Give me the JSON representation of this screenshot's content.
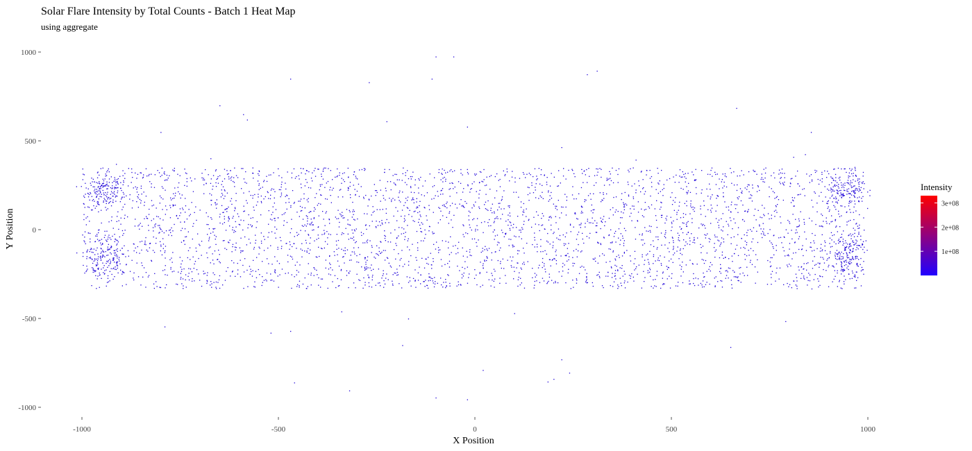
{
  "chart_data": {
    "type": "heatmap",
    "title": "Solar Flare Intensity by Total Counts - Batch 1 Heat Map",
    "subtitle": "using aggregate",
    "xlabel": "X Position",
    "ylabel": "Y Position",
    "xlim": [
      -1120,
      1230
    ],
    "ylim": [
      -1060,
      1060
    ],
    "x_ticks": [
      -1000,
      -500,
      0,
      500,
      1000
    ],
    "x_tick_labels": [
      "-1000",
      "-500",
      "0",
      "500",
      "1000"
    ],
    "y_ticks": [
      1000,
      500,
      0,
      -500,
      -1000
    ],
    "y_tick_labels": [
      "1000",
      "500",
      "0",
      "-500",
      "-1000"
    ],
    "grid": false,
    "legend": {
      "title": "Intensity",
      "placement": "right",
      "color_low": "#2000ff",
      "color_high": "#ff0000",
      "range": [
        0,
        330000000
      ],
      "ticks": [
        100000000,
        200000000,
        300000000
      ],
      "tick_labels": [
        "1e+08",
        "2e+08",
        "3e+08"
      ]
    },
    "point_color": "#1c00d8",
    "point_count_estimate": 4200,
    "main_band": {
      "x": [
        -1000,
        990
      ],
      "y": [
        -330,
        350
      ]
    },
    "clusters": [
      {
        "x": -945,
        "y": 220,
        "spread_x": 25,
        "spread_y": 50
      },
      {
        "x": -945,
        "y": -150,
        "spread_x": 25,
        "spread_y": 60
      },
      {
        "x": 945,
        "y": 230,
        "spread_x": 25,
        "spread_y": 50
      },
      {
        "x": 950,
        "y": -130,
        "spread_x": 25,
        "spread_y": 60
      }
    ],
    "outliers": [
      {
        "x": -990,
        "y": 30
      },
      {
        "x": -800,
        "y": 550
      },
      {
        "x": -790,
        "y": -545
      },
      {
        "x": -650,
        "y": 700
      },
      {
        "x": -590,
        "y": 650
      },
      {
        "x": -580,
        "y": 620
      },
      {
        "x": -470,
        "y": 850
      },
      {
        "x": -470,
        "y": -570
      },
      {
        "x": -460,
        "y": -860
      },
      {
        "x": -520,
        "y": -580
      },
      {
        "x": -340,
        "y": -460
      },
      {
        "x": -320,
        "y": -905
      },
      {
        "x": -270,
        "y": 830
      },
      {
        "x": -225,
        "y": 610
      },
      {
        "x": -170,
        "y": -500
      },
      {
        "x": -185,
        "y": -650
      },
      {
        "x": -110,
        "y": 850
      },
      {
        "x": -100,
        "y": 975
      },
      {
        "x": -100,
        "y": -945
      },
      {
        "x": -55,
        "y": 975
      },
      {
        "x": -20,
        "y": 580
      },
      {
        "x": -20,
        "y": -955
      },
      {
        "x": 20,
        "y": -790
      },
      {
        "x": 100,
        "y": -470
      },
      {
        "x": 185,
        "y": -855
      },
      {
        "x": 200,
        "y": -840
      },
      {
        "x": 220,
        "y": 465
      },
      {
        "x": 220,
        "y": -730
      },
      {
        "x": 240,
        "y": -805
      },
      {
        "x": 285,
        "y": 875
      },
      {
        "x": 310,
        "y": 895
      },
      {
        "x": 650,
        "y": -660
      },
      {
        "x": 665,
        "y": 685
      },
      {
        "x": 790,
        "y": -515
      },
      {
        "x": 810,
        "y": 410
      },
      {
        "x": 840,
        "y": 425
      },
      {
        "x": 855,
        "y": 550
      }
    ]
  }
}
